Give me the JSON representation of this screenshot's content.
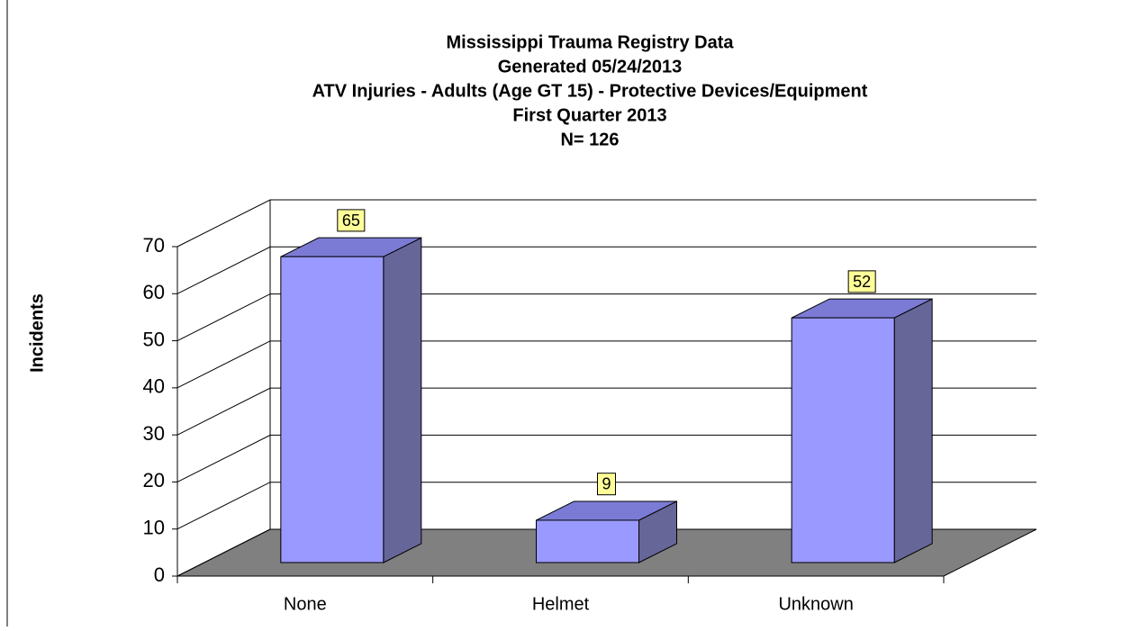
{
  "chart_data": {
    "type": "bar3d",
    "title": "Mississippi Trauma Registry Data",
    "subtitle": [
      "Generated 05/24/2013",
      "ATV Injuries - Adults (Age GT 15) - Protective Devices/Equipment",
      "First Quarter 2013",
      "N= 126"
    ],
    "y_label": "Incidents",
    "categories": [
      "None",
      "Helmet",
      "Unknown"
    ],
    "values": [
      65,
      9,
      52
    ],
    "color": "#9999ff",
    "ylim": [
      0,
      70
    ],
    "yticks": [
      0,
      10,
      20,
      30,
      40,
      50,
      60,
      70
    ],
    "grid": true
  }
}
